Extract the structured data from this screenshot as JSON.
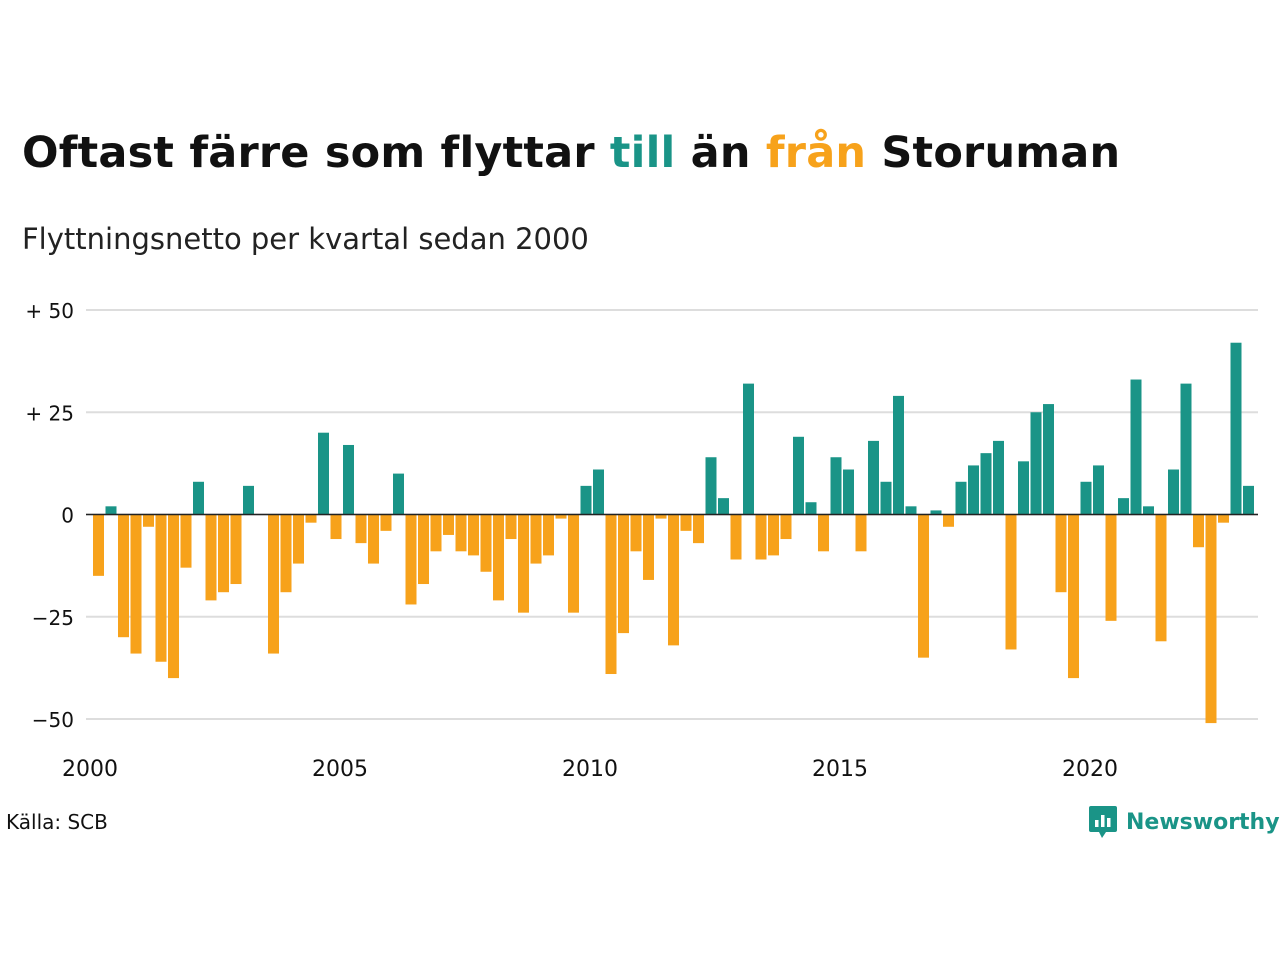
{
  "title": {
    "part1": "Oftast färre som flyttar ",
    "till": "till",
    "part2": " än ",
    "fran": "från",
    "part3": " Storuman"
  },
  "subtitle": "Flyttningsnetto per kvartal sedan 2000",
  "source": "Källa: SCB",
  "brand": "Newsworthy",
  "colors": {
    "positive": "#1a9487",
    "negative": "#f7a21b",
    "grid": "#dddddd",
    "text": "#111111"
  },
  "chart_data": {
    "type": "bar",
    "x_start": 2000,
    "x_tick_labels": [
      "2000",
      "2005",
      "2010",
      "2015",
      "2020"
    ],
    "y_tick_labels": [
      "+ 50",
      "+ 25",
      "0",
      "−25",
      "−50"
    ],
    "y_ticks": [
      50,
      25,
      0,
      -25,
      -50
    ],
    "ylim": [
      -50,
      50
    ],
    "grid": true,
    "series": [
      {
        "values": [
          -15,
          2,
          -30,
          -34,
          -3,
          -36,
          -40,
          -13,
          8,
          -21,
          -19,
          -17,
          7,
          0,
          -34,
          -19,
          -12,
          -2,
          20,
          -6,
          17,
          -7,
          -12,
          -4,
          10,
          -22,
          -17,
          -9,
          -5,
          -9,
          -10,
          -14,
          -21,
          -6,
          -24,
          -12,
          -10,
          -1,
          -24,
          7,
          11,
          -39,
          -29,
          -9,
          -16,
          -1,
          -32,
          -4,
          -7,
          14,
          4,
          -11,
          32,
          -11,
          -10,
          -6,
          19,
          3,
          -9,
          14,
          11,
          -9,
          18,
          8,
          29,
          2,
          -35,
          1,
          -3,
          8,
          12,
          15,
          18,
          -33,
          13,
          25,
          27,
          -19,
          -40,
          8,
          12,
          -26,
          4,
          33,
          2,
          -31,
          11,
          32,
          -8,
          -51,
          -2,
          42,
          7
        ]
      }
    ]
  }
}
